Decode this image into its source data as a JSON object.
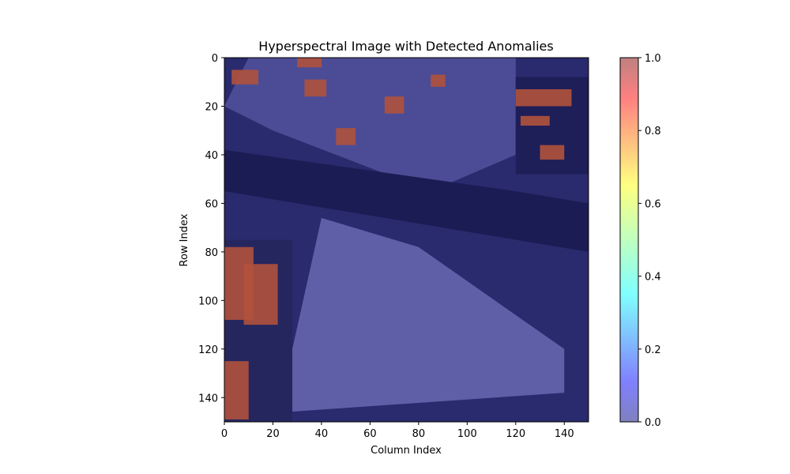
{
  "chart_data": {
    "type": "heatmap",
    "title": "Hyperspectral Image with Detected Anomalies",
    "xlabel": "Column Index",
    "ylabel": "Row Index",
    "xlim": [
      0,
      150
    ],
    "ylim": [
      150,
      0
    ],
    "xticks": [
      0,
      20,
      40,
      60,
      80,
      100,
      120,
      140
    ],
    "yticks": [
      0,
      20,
      40,
      60,
      80,
      100,
      120,
      140
    ],
    "colorbar": {
      "colormap": "jet",
      "alpha": 0.5,
      "range": [
        0,
        1
      ],
      "ticks": [
        "0.0",
        "0.2",
        "0.4",
        "0.6",
        "0.8",
        "1.0"
      ]
    },
    "anomaly_regions": [
      {
        "x": [
          0,
          12
        ],
        "y": [
          78,
          108
        ],
        "value": 1
      },
      {
        "x": [
          120,
          143
        ],
        "y": [
          13,
          20
        ],
        "value": 1
      },
      {
        "x": [
          3,
          14
        ],
        "y": [
          5,
          11
        ],
        "value": 1
      },
      {
        "x": [
          30,
          40
        ],
        "y": [
          0,
          4
        ],
        "value": 1
      },
      {
        "x": [
          66,
          74
        ],
        "y": [
          16,
          23
        ],
        "value": 1
      },
      {
        "x": [
          85,
          91
        ],
        "y": [
          7,
          12
        ],
        "value": 1
      },
      {
        "x": [
          46,
          54
        ],
        "y": [
          29,
          36
        ],
        "value": 1
      },
      {
        "x": [
          33,
          42
        ],
        "y": [
          9,
          16
        ],
        "value": 1
      },
      {
        "x": [
          122,
          134
        ],
        "y": [
          24,
          28
        ],
        "value": 1
      },
      {
        "x": [
          130,
          140
        ],
        "y": [
          36,
          42
        ],
        "value": 1
      },
      {
        "x": [
          8,
          22
        ],
        "y": [
          85,
          110
        ],
        "value": 1
      },
      {
        "x": [
          0,
          10
        ],
        "y": [
          125,
          149
        ],
        "value": 1
      }
    ],
    "colors": {
      "background_low": "#2a2a6e",
      "field_light": "#5f5fa8",
      "road_dark": "#1c1c55",
      "anomaly": "#b0523c"
    }
  }
}
